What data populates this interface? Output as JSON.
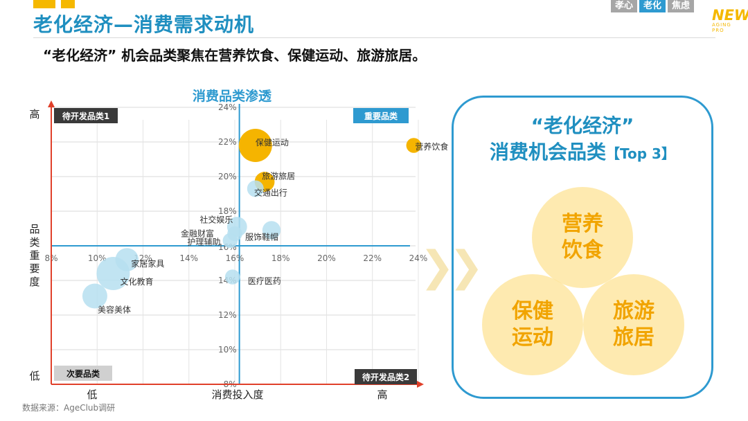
{
  "header": {
    "title": "老化经济—消费需求动机",
    "tags": [
      "孝心",
      "老化",
      "焦虑"
    ],
    "active_tag_index": 1,
    "logo_main": "NEW",
    "logo_sub": "AGING PRO",
    "subtitle": "“老化经济” 机会品类聚焦在营养饮食、保健运动、旅游旅居。"
  },
  "chart_data": {
    "type": "scatter",
    "title": "消费品类渗透",
    "xlabel": "消费投入度",
    "ylabel": "品类重要度",
    "x_axis_low": "低",
    "x_axis_high": "高",
    "y_axis_low": "低",
    "y_axis_high": "高",
    "x_ticks": [
      "8%",
      "10%",
      "12%",
      "14%",
      "16%",
      "18%",
      "20%",
      "22%",
      "24%"
    ],
    "y_ticks": [
      "8%",
      "10%",
      "12%",
      "14%",
      "16%",
      "18%",
      "20%",
      "22%",
      "24%"
    ],
    "xlim": [
      8,
      24
    ],
    "ylim": [
      8,
      24
    ],
    "x_crossing": 16.2,
    "y_crossing": 16,
    "quadrants": [
      "待开发品类1",
      "重要品类",
      "次要品类",
      "待开发品类2"
    ],
    "points": [
      {
        "label": "保健运动",
        "x": 16.9,
        "y": 21.8,
        "r": 1.0,
        "color": "#f5b400"
      },
      {
        "label": "营养饮食",
        "x": 23.8,
        "y": 21.8,
        "r": 0.45,
        "color": "#f5b400"
      },
      {
        "label": "旅游旅居",
        "x": 17.3,
        "y": 19.7,
        "r": 0.6,
        "color": "#f5b400"
      },
      {
        "label": "交通出行",
        "x": 16.9,
        "y": 19.3,
        "r": 0.5,
        "color": "#b6dff0"
      },
      {
        "label": "社交娱乐",
        "x": 16.1,
        "y": 17.1,
        "r": 0.6,
        "color": "#b6dff0"
      },
      {
        "label": "服饰鞋帽",
        "x": 17.6,
        "y": 16.9,
        "r": 0.55,
        "color": "#b6dff0"
      },
      {
        "label": "金融财富",
        "x": 16.0,
        "y": 16.7,
        "r": 0.45,
        "color": "#b6dff0"
      },
      {
        "label": "护理辅助",
        "x": 15.8,
        "y": 16.3,
        "r": 0.45,
        "color": "#b6dff0"
      },
      {
        "label": "家居家具",
        "x": 11.3,
        "y": 15.2,
        "r": 0.7,
        "color": "#b6dff0"
      },
      {
        "label": "文化教育",
        "x": 10.7,
        "y": 14.4,
        "r": 1.0,
        "color": "#b6dff0"
      },
      {
        "label": "美容美体",
        "x": 9.9,
        "y": 13.1,
        "r": 0.75,
        "color": "#b6dff0"
      },
      {
        "label": "医疗医药",
        "x": 15.9,
        "y": 14.2,
        "r": 0.45,
        "color": "#b6dff0"
      }
    ]
  },
  "panel": {
    "title_line1": "“老化经济”",
    "title_line2": "消费机会品类",
    "title_tag": "【Top 3】",
    "circles": [
      {
        "line1": "营养",
        "line2": "饮食"
      },
      {
        "line1": "保健",
        "line2": "运动"
      },
      {
        "line1": "旅游",
        "line2": "旅居"
      }
    ]
  },
  "footer": {
    "source": "数据来源：AgeClub调研"
  }
}
